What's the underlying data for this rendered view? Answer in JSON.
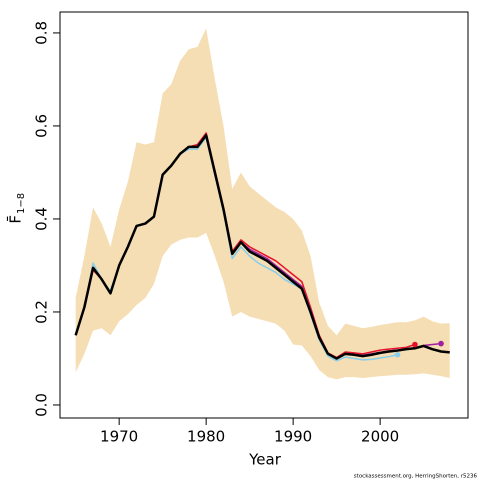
{
  "chart_data": {
    "type": "line",
    "xlabel": "Year",
    "ylabel": "F̄",
    "ylabel_sub": "1−8",
    "footer": "stockassessment.org, HerringShorten, r5236",
    "x": [
      1965,
      1966,
      1967,
      1968,
      1969,
      1970,
      1971,
      1972,
      1973,
      1974,
      1975,
      1976,
      1977,
      1978,
      1979,
      1980,
      1981,
      1982,
      1983,
      1984,
      1985,
      1986,
      1987,
      1988,
      1989,
      1990,
      1991,
      1992,
      1993,
      1994,
      1995,
      1996,
      1997,
      1998,
      1999,
      2000,
      2001,
      2002,
      2003,
      2004,
      2005,
      2006,
      2007,
      2008
    ],
    "band": {
      "color": "#f5deb3",
      "upper": [
        0.23,
        0.32,
        0.425,
        0.39,
        0.34,
        0.42,
        0.48,
        0.565,
        0.56,
        0.565,
        0.67,
        0.69,
        0.74,
        0.765,
        0.77,
        0.81,
        0.7,
        0.6,
        0.465,
        0.5,
        0.47,
        0.455,
        0.44,
        0.425,
        0.415,
        0.4,
        0.375,
        0.32,
        0.22,
        0.17,
        0.15,
        0.175,
        0.17,
        0.165,
        0.168,
        0.172,
        0.175,
        0.178,
        0.178,
        0.182,
        0.19,
        0.18,
        0.175,
        0.176
      ],
      "lower": [
        0.07,
        0.11,
        0.16,
        0.165,
        0.15,
        0.18,
        0.195,
        0.215,
        0.23,
        0.26,
        0.32,
        0.345,
        0.355,
        0.36,
        0.36,
        0.37,
        0.32,
        0.265,
        0.19,
        0.2,
        0.19,
        0.185,
        0.18,
        0.175,
        0.16,
        0.13,
        0.128,
        0.105,
        0.075,
        0.06,
        0.055,
        0.06,
        0.06,
        0.058,
        0.06,
        0.062,
        0.063,
        0.065,
        0.065,
        0.066,
        0.068,
        0.065,
        0.062,
        0.058
      ]
    },
    "retro": [
      {
        "color": "#87ceeb",
        "values": [
          0.15,
          0.21,
          0.305,
          0.27,
          0.245,
          0.3,
          0.34,
          0.385,
          0.39,
          0.405,
          0.495,
          0.515,
          0.54,
          0.55,
          0.55,
          0.575,
          0.495,
          0.415,
          0.315,
          0.34,
          0.32,
          0.305,
          0.295,
          0.285,
          0.27,
          0.26,
          0.25,
          0.195,
          0.14,
          0.105,
          0.095,
          0.103,
          0.1,
          0.097,
          0.098,
          0.101,
          0.104,
          0.108,
          null,
          null,
          null,
          null,
          null,
          null
        ]
      },
      {
        "color": "#e8112d",
        "values": [
          0.15,
          0.21,
          0.29,
          0.27,
          0.24,
          0.3,
          0.34,
          0.385,
          0.39,
          0.405,
          0.495,
          0.515,
          0.54,
          0.555,
          0.56,
          0.585,
          0.505,
          0.425,
          0.33,
          0.355,
          0.34,
          0.33,
          0.32,
          0.31,
          0.295,
          0.28,
          0.265,
          0.21,
          0.15,
          0.112,
          0.102,
          0.114,
          0.112,
          0.11,
          0.114,
          0.118,
          0.12,
          0.122,
          0.124,
          0.13,
          null,
          null,
          null,
          null
        ]
      },
      {
        "color": "#a020a0",
        "values": [
          0.15,
          0.21,
          0.295,
          0.27,
          0.24,
          0.3,
          0.34,
          0.385,
          0.39,
          0.405,
          0.495,
          0.515,
          0.54,
          0.555,
          0.555,
          0.58,
          0.5,
          0.42,
          0.325,
          0.35,
          0.335,
          0.325,
          0.315,
          0.3,
          0.285,
          0.27,
          0.255,
          0.205,
          0.145,
          0.11,
          0.1,
          0.11,
          0.108,
          0.107,
          0.11,
          0.113,
          0.116,
          0.118,
          0.12,
          0.123,
          0.128,
          0.13,
          0.132,
          null
        ]
      }
    ],
    "series": [
      {
        "color": "#000000",
        "values": [
          0.15,
          0.21,
          0.295,
          0.27,
          0.24,
          0.3,
          0.34,
          0.385,
          0.39,
          0.405,
          0.495,
          0.515,
          0.54,
          0.555,
          0.555,
          0.58,
          0.5,
          0.42,
          0.325,
          0.35,
          0.33,
          0.32,
          0.31,
          0.295,
          0.28,
          0.265,
          0.25,
          0.2,
          0.145,
          0.11,
          0.1,
          0.11,
          0.108,
          0.105,
          0.108,
          0.112,
          0.115,
          0.117,
          0.12,
          0.122,
          0.127,
          0.12,
          0.115,
          0.113
        ]
      }
    ],
    "xlim": [
      1963.2,
      2010.1
    ],
    "ylim": [
      -0.028,
      0.845
    ],
    "xticks": [
      1970,
      1980,
      1990,
      2000
    ],
    "yticks": [
      {
        "value": 0,
        "label": "0.0"
      },
      0.2,
      0.4,
      0.6,
      0.8
    ]
  }
}
